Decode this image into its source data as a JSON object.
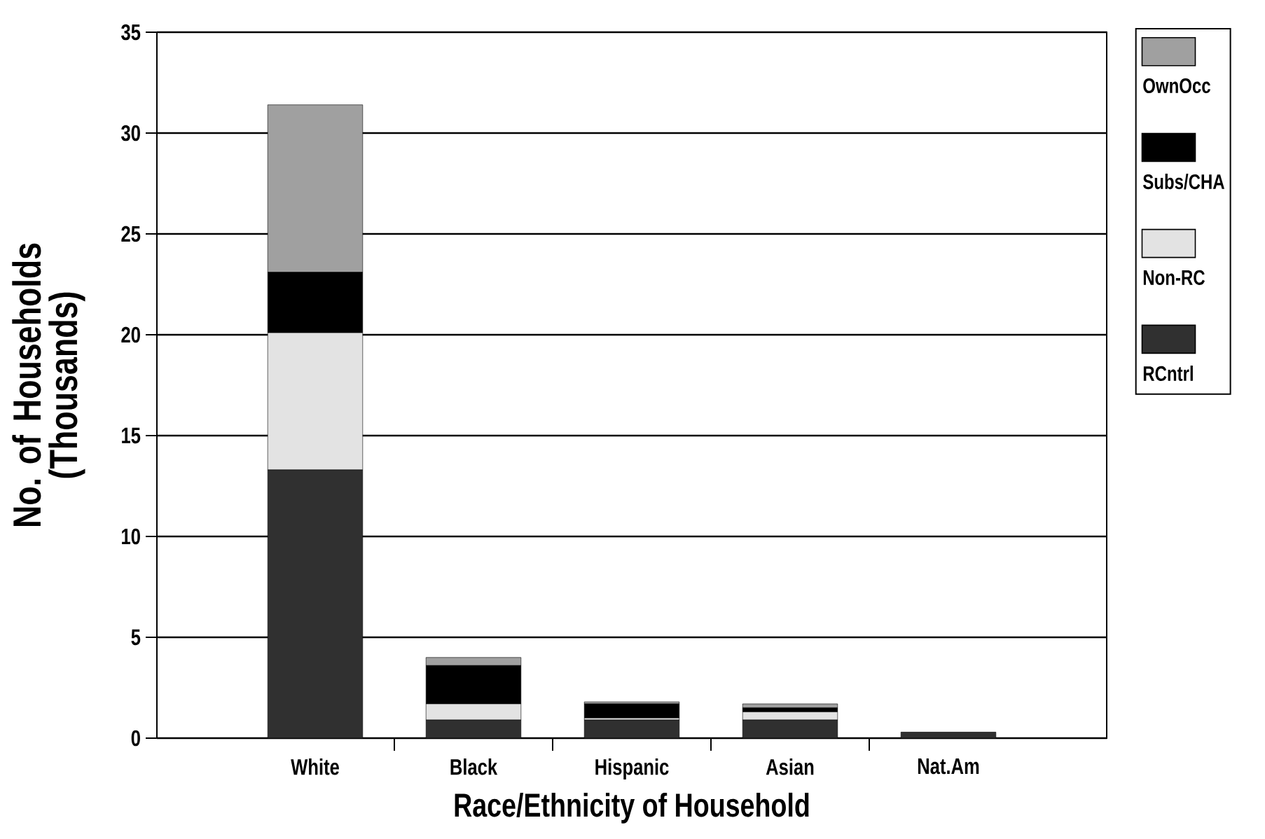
{
  "chart_data": {
    "type": "bar",
    "stacked": true,
    "xlabel": "Race/Ethnicity of Household",
    "ylabel": "No. of Households (Thousands)",
    "categories": [
      "White",
      "Black",
      "Hispanic",
      "Asian",
      "Nat.Am"
    ],
    "series": [
      {
        "name": "RCntrl",
        "color": "#303030",
        "values": [
          13.3,
          0.9,
          0.9,
          0.9,
          0.3
        ]
      },
      {
        "name": "Non-RC",
        "color": "#e3e3e3",
        "values": [
          6.8,
          0.8,
          0.1,
          0.4,
          0
        ]
      },
      {
        "name": "Subs/CHA",
        "color": "#000000",
        "values": [
          3.0,
          1.9,
          0.7,
          0.2,
          0
        ]
      },
      {
        "name": "OwnOcc",
        "color": "#a0a0a0",
        "values": [
          8.3,
          0.4,
          0.1,
          0.2,
          0
        ]
      }
    ],
    "ylim": [
      0,
      35
    ],
    "yticks": [
      0,
      5,
      10,
      15,
      20,
      25,
      30,
      35
    ],
    "grid": "y",
    "legend": "top right"
  }
}
